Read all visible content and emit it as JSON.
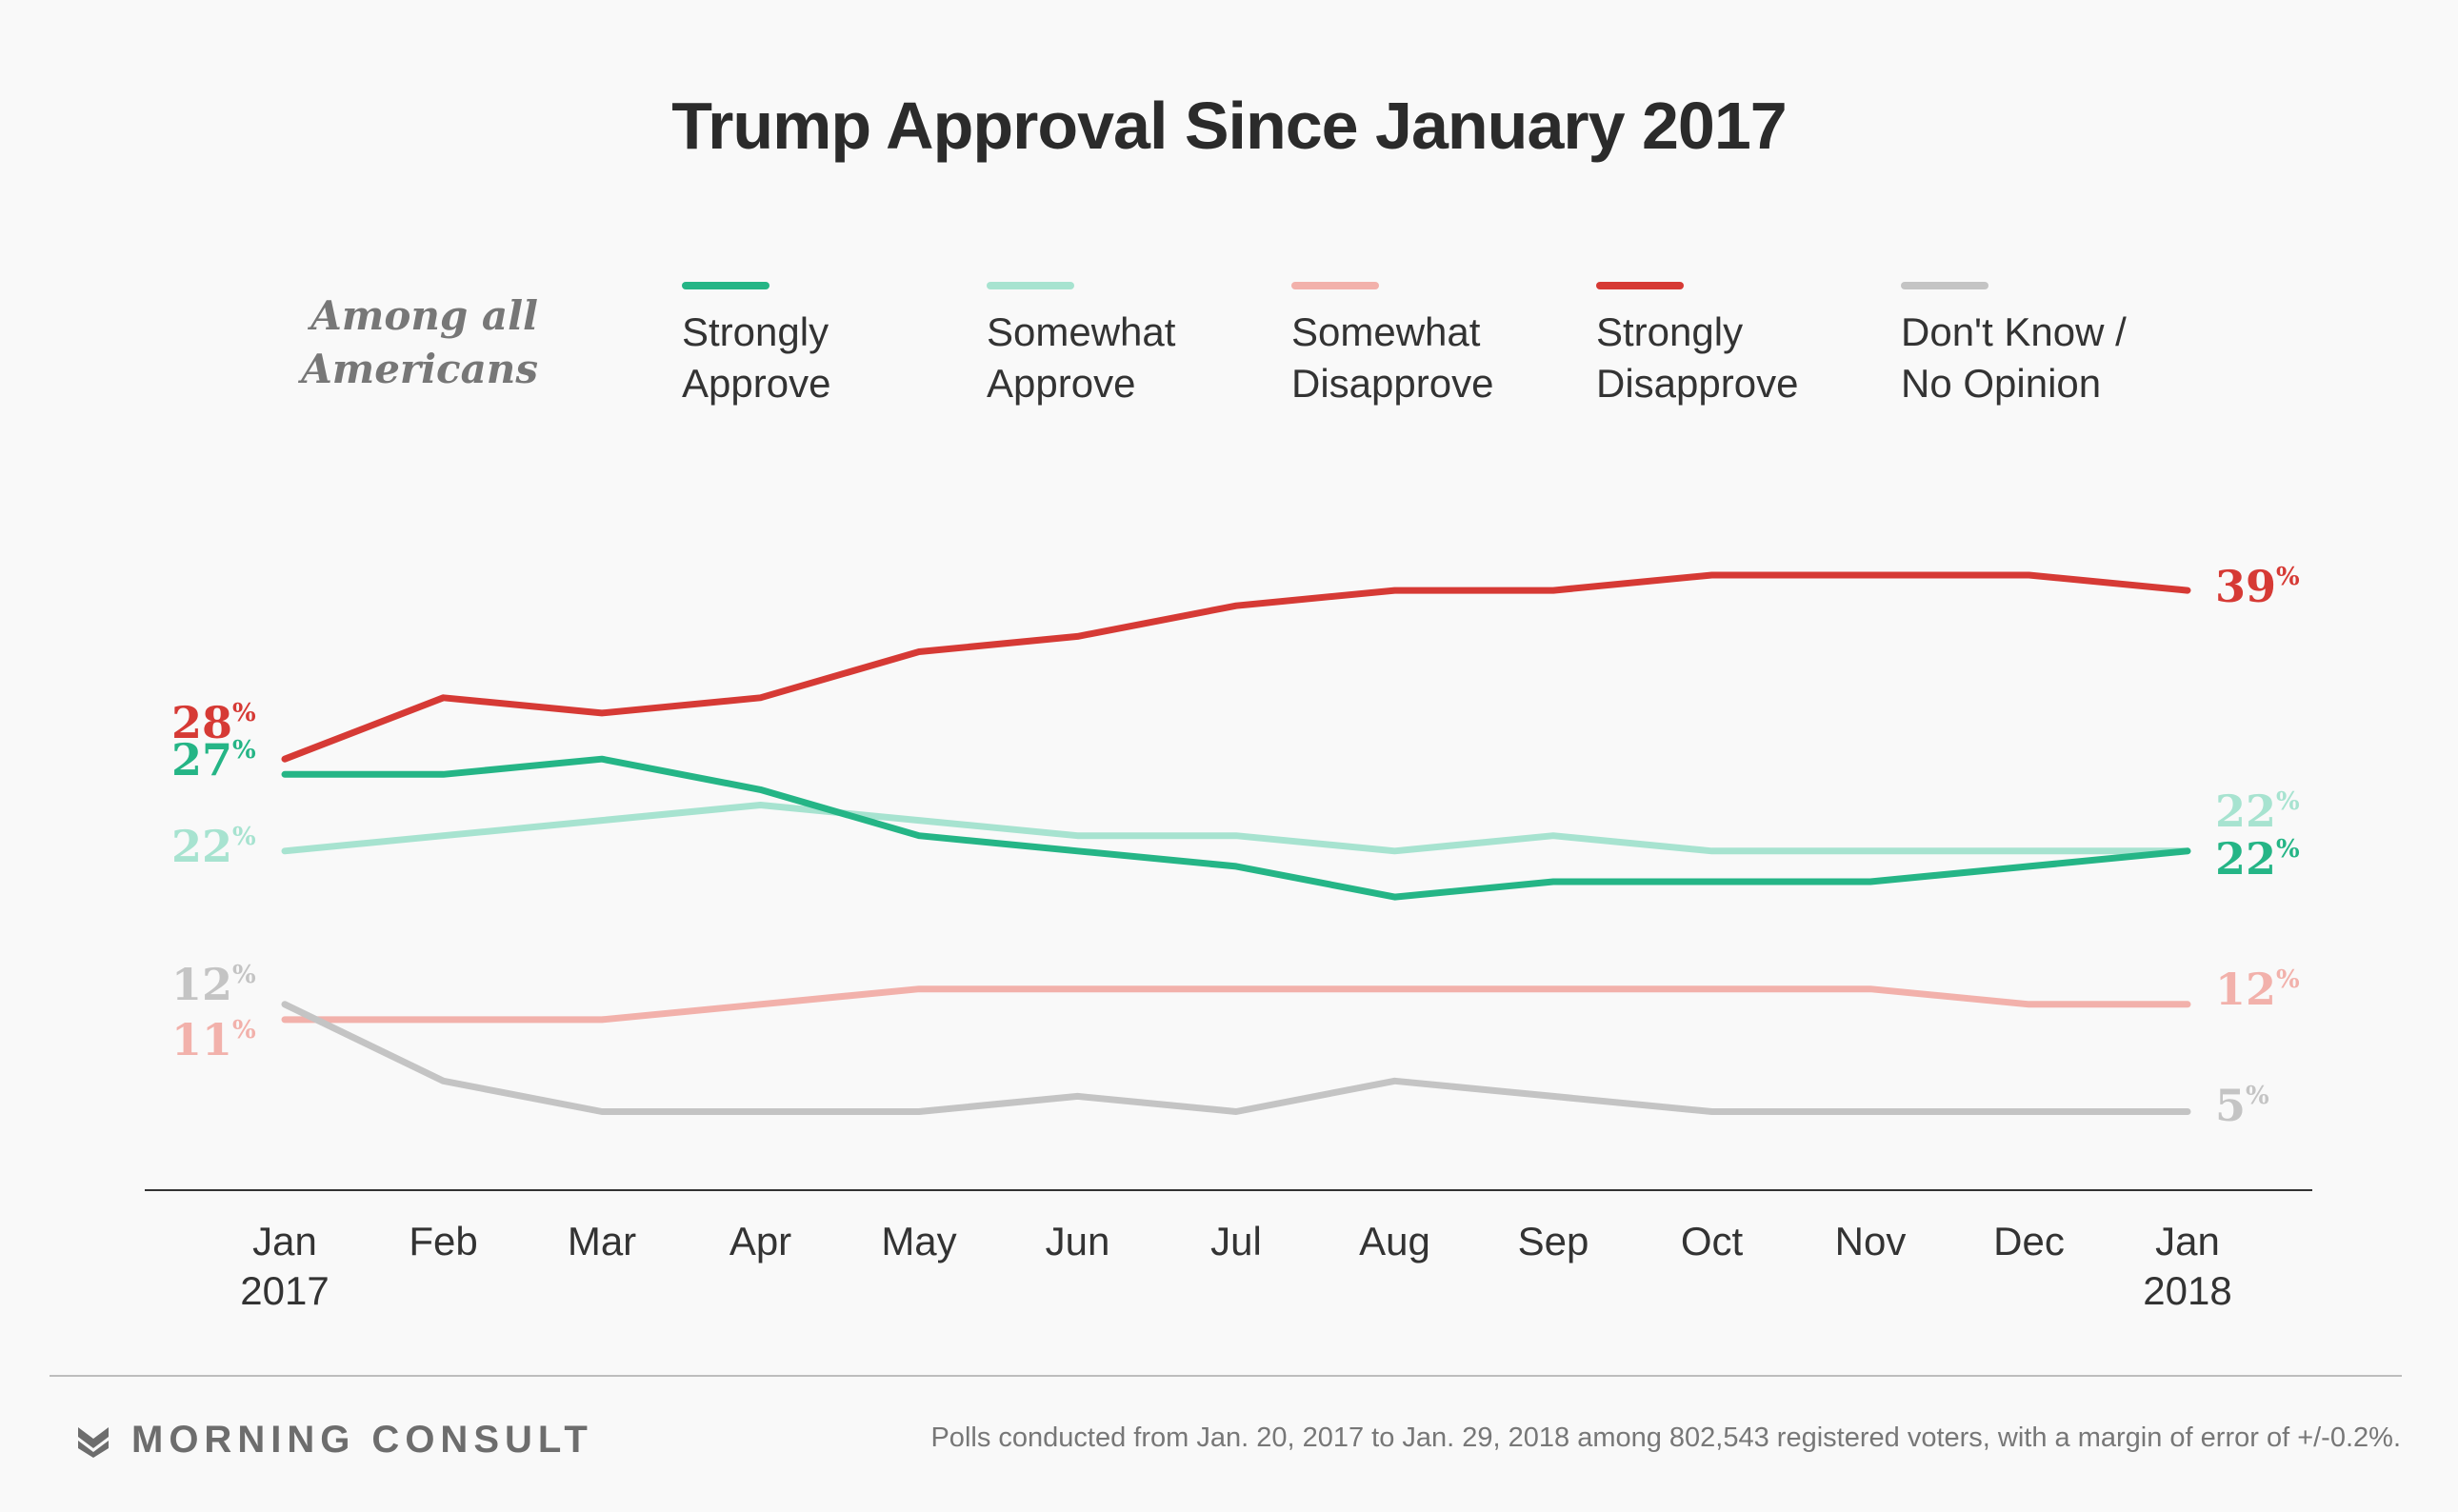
{
  "chart_data": {
    "type": "line",
    "title": "Trump Approval Since January 2017",
    "subtitle": "Among all\nAmericans",
    "categories": [
      "Jan\n2017",
      "Feb",
      "Mar",
      "Apr",
      "May",
      "Jun",
      "Jul",
      "Aug",
      "Sep",
      "Oct",
      "Nov",
      "Dec",
      "Jan\n2018"
    ],
    "ylim": [
      0,
      45
    ],
    "grid": false,
    "legend_position": "top",
    "series": [
      {
        "name": "Strongly\nApprove",
        "color": "#25b586",
        "values": [
          27,
          27,
          28,
          26,
          23,
          22,
          21,
          19,
          20,
          20,
          20,
          21,
          22
        ],
        "start_label": "27",
        "end_label": "22"
      },
      {
        "name": "Somewhat\nApprove",
        "color": "#a7e3d0",
        "values": [
          22,
          23,
          24,
          25,
          24,
          23,
          23,
          22,
          23,
          22,
          22,
          22,
          22
        ],
        "start_label": "22",
        "end_label": "22"
      },
      {
        "name": "Somewhat\nDisapprove",
        "color": "#f2b1ab",
        "values": [
          11,
          11,
          11,
          12,
          13,
          13,
          13,
          13,
          13,
          13,
          13,
          12,
          12
        ],
        "start_label": "11",
        "end_label": "12"
      },
      {
        "name": "Strongly\nDisapprove",
        "color": "#d63a35",
        "values": [
          28,
          32,
          31,
          32,
          35,
          36,
          38,
          39,
          39,
          40,
          40,
          40,
          39
        ],
        "start_label": "28",
        "end_label": "39"
      },
      {
        "name": "Don't Know /\nNo Opinion",
        "color": "#c4c4c4",
        "values": [
          12,
          7,
          5,
          5,
          5,
          6,
          5,
          7,
          6,
          5,
          5,
          5,
          5
        ],
        "start_label": "12",
        "end_label": "5"
      }
    ],
    "percent_suffix": "%"
  },
  "footer": {
    "brand": "MORNING CONSULT",
    "note": "Polls conducted from Jan. 20, 2017 to Jan. 29, 2018 among 802,543 registered voters, with a margin of error of +/-0.2%."
  }
}
